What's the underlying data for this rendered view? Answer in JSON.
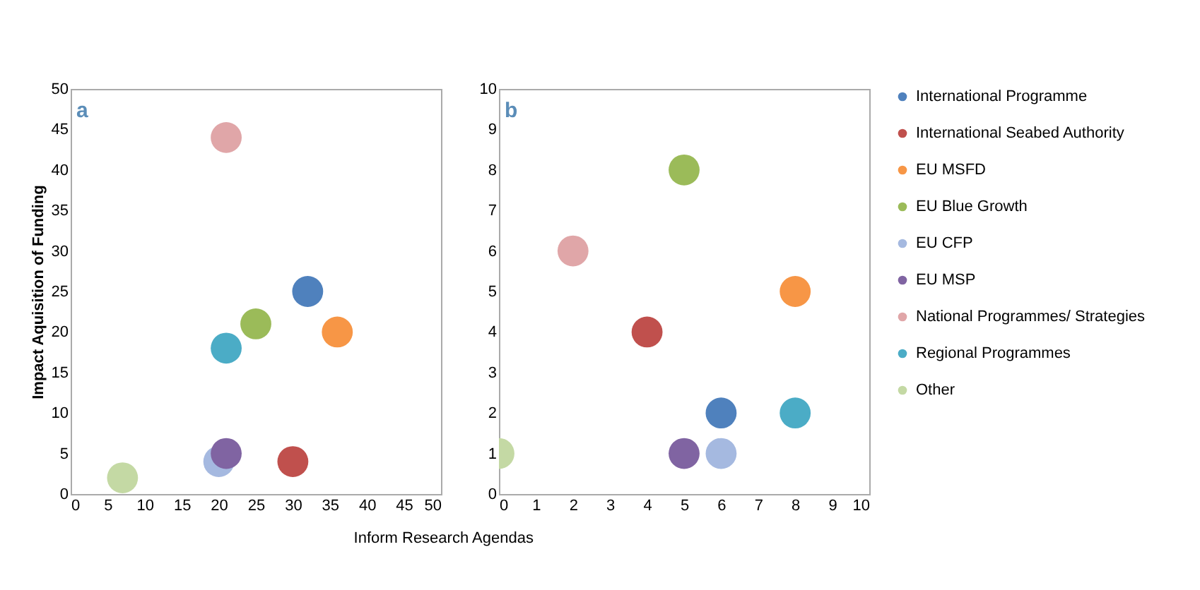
{
  "chart_data": [
    {
      "type": "scatter",
      "annotations": [
        "a"
      ],
      "xlabel": "Inform Research Agendas",
      "ylabel": "Impact Aquisition of Funding",
      "xlim": [
        0,
        50
      ],
      "xticks": [
        0,
        5,
        10,
        15,
        20,
        25,
        30,
        35,
        40,
        45,
        50
      ],
      "ylim": [
        0,
        50
      ],
      "yticks": [
        0,
        5,
        10,
        15,
        20,
        25,
        30,
        35,
        40,
        45,
        50
      ],
      "grid": false,
      "legend": false,
      "marker": "circle",
      "series": [
        {
          "color": "#4f81bd",
          "x": [
            32
          ],
          "values": [
            25
          ]
        },
        {
          "color": "#c0504d",
          "x": [
            30
          ],
          "values": [
            4
          ]
        },
        {
          "color": "#f79646",
          "x": [
            36
          ],
          "values": [
            20
          ]
        },
        {
          "color": "#9bbb59",
          "x": [
            25
          ],
          "values": [
            21
          ]
        },
        {
          "color": "#a5b9e0",
          "x": [
            20
          ],
          "values": [
            4
          ]
        },
        {
          "color": "#8064a2",
          "x": [
            21
          ],
          "values": [
            5
          ]
        },
        {
          "color": "#e0a6a8",
          "x": [
            21
          ],
          "values": [
            44
          ]
        },
        {
          "color": "#4bacc6",
          "x": [
            21
          ],
          "values": [
            18
          ]
        },
        {
          "color": "#c4d9a4",
          "x": [
            7
          ],
          "values": [
            2
          ]
        }
      ]
    },
    {
      "type": "scatter",
      "annotations": [
        "b"
      ],
      "xlim": [
        0,
        10
      ],
      "xticks": [
        0,
        1,
        2,
        3,
        4,
        5,
        6,
        7,
        8,
        9,
        10
      ],
      "ylim": [
        0,
        10
      ],
      "yticks": [
        0,
        1,
        2,
        3,
        4,
        5,
        6,
        7,
        8,
        9,
        10
      ],
      "grid": false,
      "legend": "right",
      "marker": "circle",
      "series": [
        {
          "name": "International Programme",
          "color": "#4f81bd",
          "x": [
            6
          ],
          "values": [
            2
          ]
        },
        {
          "name": "International Seabed Authority",
          "color": "#c0504d",
          "x": [
            4
          ],
          "values": [
            4
          ]
        },
        {
          "name": "EU MSFD",
          "color": "#f79646",
          "x": [
            8
          ],
          "values": [
            5
          ]
        },
        {
          "name": "EU Blue Growth",
          "color": "#9bbb59",
          "x": [
            5
          ],
          "values": [
            8
          ]
        },
        {
          "name": "EU CFP",
          "color": "#a5b9e0",
          "x": [
            6
          ],
          "values": [
            1
          ]
        },
        {
          "name": "EU MSP",
          "color": "#8064a2",
          "x": [
            5
          ],
          "values": [
            1
          ]
        },
        {
          "name": "National Programmes/ Strategies",
          "color": "#e0a6a8",
          "x": [
            2
          ],
          "values": [
            6
          ]
        },
        {
          "name": "Regional Programmes",
          "color": "#4bacc6",
          "x": [
            8
          ],
          "values": [
            2
          ]
        },
        {
          "name": "Other",
          "color": "#c4d9a4",
          "x": [
            0
          ],
          "values": [
            1
          ]
        }
      ]
    }
  ]
}
